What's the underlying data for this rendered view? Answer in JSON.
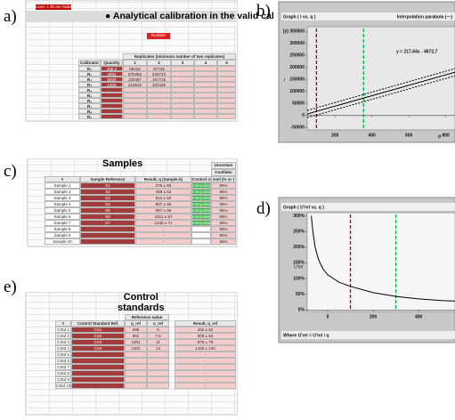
{
  "labels": [
    "a)",
    "b)",
    "c)",
    "d)",
    "e)"
  ],
  "sheet_a": {
    "title": "Analytical calibration in the valid cal",
    "note": "Lines 1-38 are hidden",
    "button": "Number",
    "replicates_header": "Replicates (minimum number of two replicates)",
    "header": [
      "Calibrator",
      "Quantity",
      "1",
      "2",
      "3",
      "4",
      "5"
    ],
    "rows": [
      {
        "cal": "R₀",
        "qty": "298.2",
        "r1": "59424",
        "r2": "57745"
      },
      {
        "cal": "R₁",
        "qty": "4004",
        "r1": "575358",
        "r2": "525743"
      },
      {
        "cal": "R₂",
        "qty": "8000",
        "r1": "100487",
        "r2": "167715"
      },
      {
        "cal": "R₃",
        "qty": "1400",
        "r1": "215919",
        "r2": "202445"
      },
      {
        "cal": "R₄"
      },
      {
        "cal": "R₅"
      },
      {
        "cal": "R₆"
      },
      {
        "cal": "R₇"
      },
      {
        "cal": "R₈"
      },
      {
        "cal": "R₉"
      }
    ]
  },
  "sheet_c": {
    "title": "Samples",
    "extra_header": [
      "Uncertain",
      "Confiden"
    ],
    "header": [
      "#",
      "Sample Reference",
      "Result, q (Sample.h)",
      "Control of",
      "evel (% or t"
    ],
    "rows": [
      {
        "id": "Sample 1",
        "ref": "S1",
        "result": "276 ± 69",
        "control": "Interpolated",
        "conf": "95%"
      },
      {
        "id": "Sample 2",
        "ref": "S2",
        "result": "468 ± 62",
        "control": "Interpolated",
        "conf": "95%"
      },
      {
        "id": "Sample 3",
        "ref": "S3",
        "result": "612 ± 60",
        "control": "Interpolated",
        "conf": "95%"
      },
      {
        "id": "Sample 4",
        "ref": "S4",
        "result": "807 ± 66",
        "control": "Interpolated",
        "conf": "95%"
      },
      {
        "id": "Sample 5",
        "ref": "S5",
        "result": "967 ± 66",
        "control": "Interpolated",
        "conf": "95%"
      },
      {
        "id": "Sample 6",
        "ref": "S6",
        "result": "1011 ± 57",
        "control": "Interpolated",
        "conf": "95%"
      },
      {
        "id": "Sample 7",
        "ref": "S7",
        "result": "1246 ± 71",
        "control": "Interpolated",
        "conf": "95%"
      },
      {
        "id": "Sample 8",
        "result": "-",
        "conf": "95%"
      },
      {
        "id": "Sample 9",
        "result": "-",
        "conf": "95%"
      },
      {
        "id": "Sample 10",
        "result": "-",
        "conf": "95%"
      }
    ]
  },
  "sheet_e": {
    "title": [
      "Control",
      "standards"
    ],
    "group_header": "Reference value",
    "header": [
      "#",
      "Control Standard Ref.",
      "q_ref",
      "u_ref",
      "Result, q_ref"
    ],
    "rows": [
      {
        "id": "CStd 1",
        "ref": "CS1",
        "q": "298",
        "u": "5",
        "result": "292 ± 52"
      },
      {
        "id": "CStd 2",
        "ref": "CS2",
        "q": "601",
        "u": "7.6",
        "result": "600 ± 63"
      },
      {
        "id": "CStd 3",
        "ref": "CS3",
        "q": "1001",
        "u": "11",
        "result": "978 ± 78"
      },
      {
        "id": "CStd 4",
        "ref": "CS4",
        "q": "1402",
        "u": "14",
        "result": "1420 ± 100"
      },
      {
        "id": "CStd 5",
        "result": "-"
      },
      {
        "id": "CStd 6",
        "result": "-"
      },
      {
        "id": "CStd 7",
        "result": "-"
      },
      {
        "id": "CStd 8",
        "result": "-"
      },
      {
        "id": "CStd 9",
        "result": "-"
      },
      {
        "id": "CStd 10",
        "result": "-"
      }
    ]
  },
  "chart_data": [
    {
      "type": "line",
      "title": "Graph ( I vs. q )",
      "legend": "Interpolation parabola (—)",
      "xlabel": "q",
      "ylabel": "I",
      "equation": "y = 217,64x - 4672,7",
      "x": [
        50,
        850
      ],
      "series": [
        {
          "color": "#000000",
          "values": [
            6210,
            180322
          ]
        },
        {
          "color": "#000000",
          "dash": true,
          "values": [
            21210,
            195322
          ]
        },
        {
          "color": "#000000",
          "dash": true,
          "values": [
            -8790,
            165322
          ]
        }
      ],
      "limits": [
        {
          "x": 100,
          "color": "#c00000"
        },
        {
          "x": 355,
          "color": "#00b050"
        }
      ],
      "xlim": [
        50,
        850
      ],
      "ylim": [
        -60000,
        370000
      ],
      "xticks": [
        200,
        400,
        600,
        800
      ],
      "yticks": [
        {
          "value": 350000,
          "label": "(y) 350000"
        },
        300000,
        250000,
        200000,
        150000,
        100000,
        50000,
        0,
        -50000
      ]
    },
    {
      "type": "line",
      "title": "Graph ( U'rel vs. q )",
      "ylabel": "U'rel",
      "footer": "Where U'rel = U'rel / q",
      "x": [
        -72,
        -65,
        -55,
        -40,
        -20,
        0,
        50,
        100,
        200,
        300,
        400,
        500,
        560
      ],
      "series": [
        {
          "color": "#000000",
          "values": [
            300,
            250,
            200,
            160,
            130,
            112,
            88,
            75,
            55,
            43,
            35,
            30,
            28
          ]
        }
      ],
      "limits": [
        {
          "x": 100,
          "color": "#c00000"
        },
        {
          "x": 300,
          "color": "#00b050"
        }
      ],
      "xlim": [
        -90,
        560
      ],
      "ylim": [
        -5,
        310
      ],
      "xticks": [
        0,
        200,
        400
      ],
      "yticks": [
        {
          "value": 300,
          "label": "300%"
        },
        {
          "value": 250,
          "label": "250%"
        },
        {
          "value": 200,
          "label": "200%"
        },
        {
          "value": 150,
          "label": "150%"
        },
        {
          "value": 100,
          "label": "100%"
        },
        {
          "value": 50,
          "label": "50%"
        },
        {
          "value": 0,
          "label": "0%"
        }
      ]
    }
  ]
}
